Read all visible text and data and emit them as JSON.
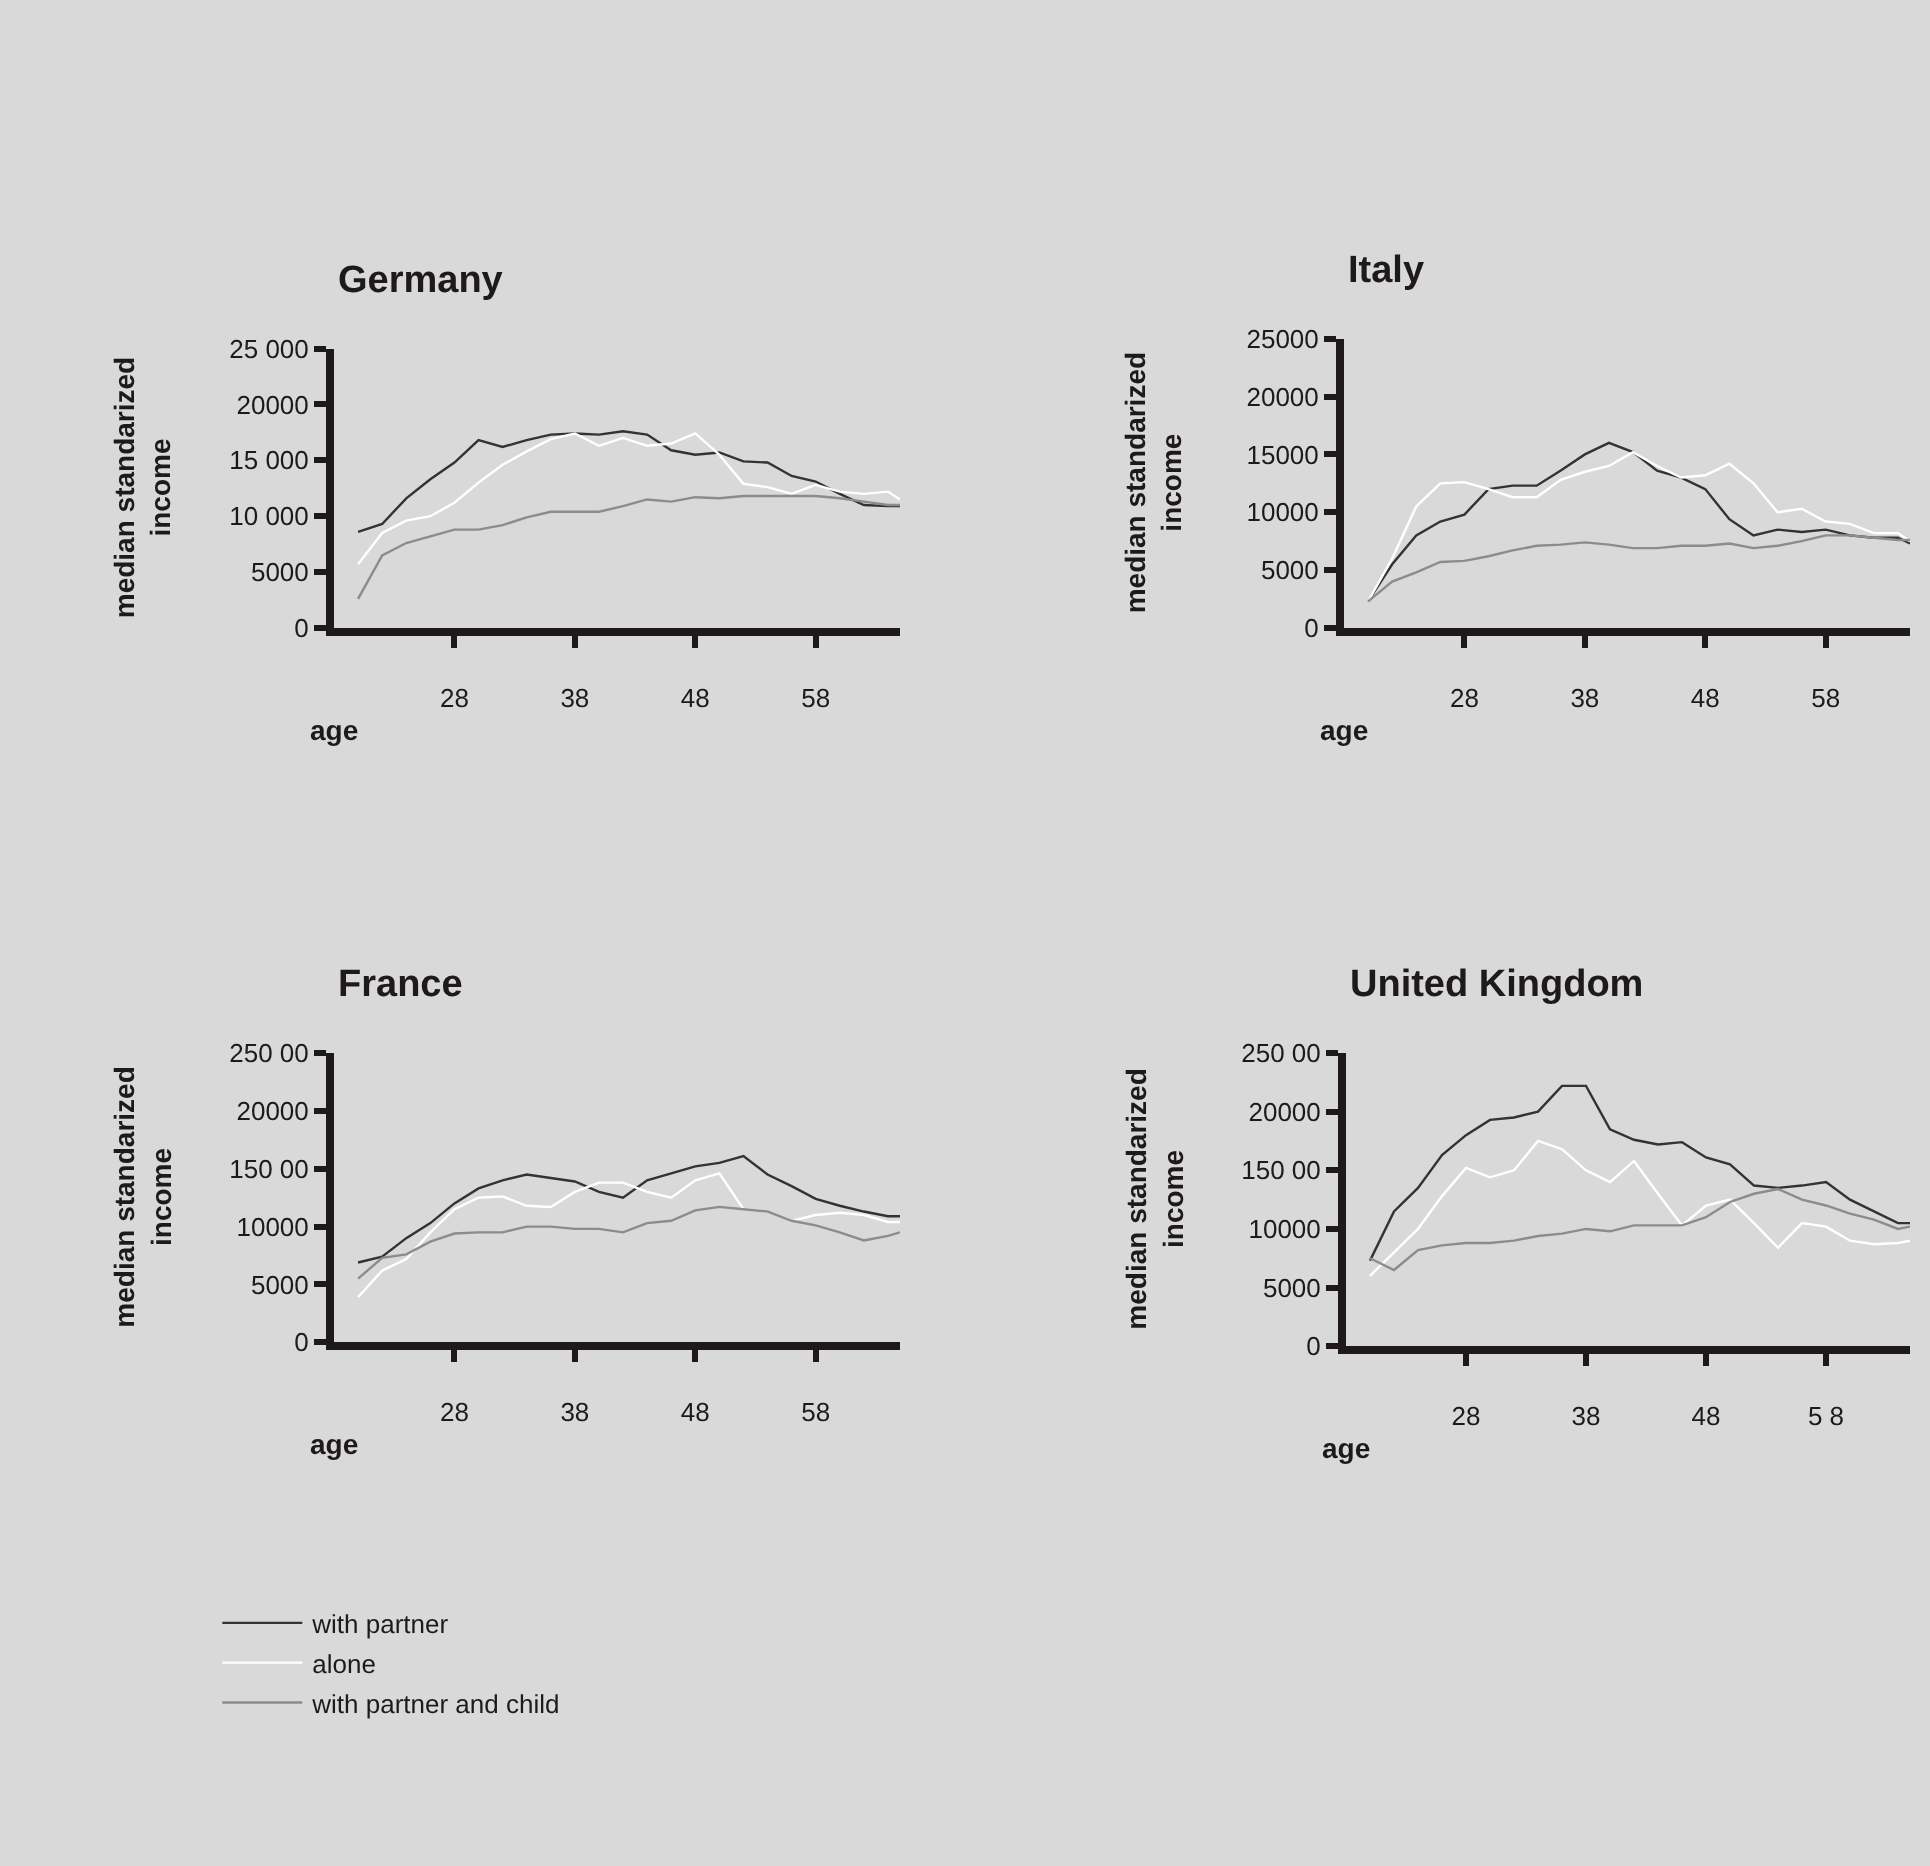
{
  "chart_data": [
    {
      "type": "line",
      "title": "Germany",
      "xlabel": "age",
      "ylabel": "median standarized income",
      "x": [
        20,
        22,
        24,
        26,
        28,
        30,
        32,
        34,
        36,
        38,
        40,
        42,
        44,
        46,
        48,
        50,
        52,
        54,
        56,
        58,
        60,
        62,
        64,
        65
      ],
      "xlim": [
        18,
        65
      ],
      "ylim": [
        0,
        25000
      ],
      "xticks": [
        28,
        38,
        48,
        58
      ],
      "yticks": [
        {
          "value": 0,
          "label": "0"
        },
        {
          "value": 5000,
          "label": "5000"
        },
        {
          "value": 10000,
          "label": "10 000"
        },
        {
          "value": 15000,
          "label": "15 000"
        },
        {
          "value": 20000,
          "label": "20000"
        },
        {
          "value": 25000,
          "label": "25 000"
        }
      ],
      "grid": false,
      "legend": "bottom left",
      "series": [
        {
          "name": "with partner",
          "color": "#333333",
          "values": [
            8600,
            9300,
            11600,
            13300,
            14800,
            16800,
            16200,
            16800,
            17300,
            17400,
            17300,
            17600,
            17300,
            15900,
            15500,
            15700,
            14900,
            14800,
            13600,
            13100,
            12000,
            11000,
            10900,
            10900
          ]
        },
        {
          "name": "alone",
          "color": "#ffffff",
          "values": [
            5700,
            8500,
            9600,
            10000,
            11200,
            13000,
            14600,
            15800,
            16900,
            17400,
            16300,
            17000,
            16300,
            16500,
            17400,
            15500,
            12900,
            12600,
            12000,
            12800,
            12200,
            12000,
            12200,
            11500
          ]
        },
        {
          "name": "with partner and child",
          "color": "#8c8c8c",
          "values": [
            2600,
            6500,
            7600,
            8200,
            8800,
            8800,
            9200,
            9900,
            10400,
            10400,
            10400,
            10900,
            11500,
            11300,
            11700,
            11600,
            11800,
            11800,
            11800,
            11800,
            11600,
            11300,
            11000,
            11000
          ]
        }
      ]
    },
    {
      "type": "line",
      "title": "Italy",
      "xlabel": "age",
      "ylabel": "median standarized income",
      "x": [
        20,
        22,
        24,
        26,
        28,
        30,
        32,
        34,
        36,
        38,
        40,
        42,
        44,
        46,
        48,
        50,
        52,
        54,
        56,
        58,
        60,
        62,
        64,
        65
      ],
      "xlim": [
        18,
        65
      ],
      "ylim": [
        0,
        25000
      ],
      "xticks": [
        28,
        38,
        48,
        58
      ],
      "yticks": [
        0,
        5000,
        10000,
        15000,
        20000,
        25000
      ],
      "grid": false,
      "series": [
        {
          "color": "#333333",
          "values": [
            2300,
            5500,
            8000,
            9200,
            9800,
            12000,
            12300,
            12300,
            13600,
            15000,
            16000,
            15200,
            13600,
            13000,
            12000,
            9400,
            8000,
            8500,
            8300,
            8500,
            8000,
            7800,
            7800,
            7300
          ]
        },
        {
          "color": "#ffffff",
          "values": [
            2300,
            6000,
            10500,
            12500,
            12600,
            12000,
            11300,
            11300,
            12800,
            13500,
            14000,
            15200,
            14000,
            13000,
            13200,
            14200,
            12500,
            10000,
            10300,
            9200,
            9000,
            8200,
            8200,
            7500
          ]
        },
        {
          "color": "#8c8c8c",
          "values": [
            2300,
            4000,
            4800,
            5700,
            5800,
            6200,
            6700,
            7100,
            7200,
            7400,
            7200,
            6900,
            6900,
            7100,
            7100,
            7300,
            6900,
            7100,
            7500,
            8000,
            8000,
            7800,
            7600,
            7600
          ]
        }
      ]
    },
    {
      "type": "line",
      "title": "France",
      "xlabel": "age",
      "ylabel": "median standarized income",
      "x": [
        20,
        22,
        24,
        26,
        28,
        30,
        32,
        34,
        36,
        38,
        40,
        42,
        44,
        46,
        48,
        50,
        52,
        54,
        56,
        58,
        60,
        62,
        64,
        65
      ],
      "xlim": [
        18,
        65
      ],
      "ylim": [
        0,
        25000
      ],
      "xticks": [
        28,
        38,
        48,
        58
      ],
      "yticks": [
        {
          "value": 0,
          "label": "0"
        },
        {
          "value": 5000,
          "label": "5000"
        },
        {
          "value": 10000,
          "label": "10000"
        },
        {
          "value": 15000,
          "label": "150 00"
        },
        {
          "value": 20000,
          "label": "20000"
        },
        {
          "value": 25000,
          "label": "250 00"
        }
      ],
      "grid": false,
      "series": [
        {
          "color": "#333333",
          "values": [
            6900,
            7400,
            9000,
            10300,
            12000,
            13300,
            14000,
            14500,
            14200,
            13900,
            13000,
            12500,
            14000,
            14600,
            15200,
            15500,
            16100,
            14500,
            13500,
            12400,
            11800,
            11300,
            10900,
            10900
          ]
        },
        {
          "color": "#ffffff",
          "values": [
            3900,
            6200,
            7200,
            9500,
            11500,
            12500,
            12600,
            11800,
            11700,
            13000,
            13800,
            13800,
            13000,
            12500,
            14000,
            14600,
            11500,
            11300,
            10500,
            11000,
            11200,
            11000,
            10400,
            10400
          ]
        },
        {
          "color": "#8c8c8c",
          "values": [
            5500,
            7300,
            7600,
            8700,
            9400,
            9500,
            9500,
            10000,
            10000,
            9800,
            9800,
            9500,
            10300,
            10500,
            11400,
            11700,
            11500,
            11300,
            10500,
            10100,
            9500,
            8800,
            9200,
            9500
          ]
        }
      ]
    },
    {
      "type": "line",
      "title": "United Kingdom",
      "xlabel": "age",
      "ylabel": "median standarized income",
      "x": [
        20,
        22,
        24,
        26,
        28,
        30,
        32,
        34,
        36,
        38,
        40,
        42,
        44,
        46,
        48,
        50,
        52,
        54,
        56,
        58,
        60,
        62,
        64,
        65
      ],
      "xlim": [
        18,
        65
      ],
      "ylim": [
        0,
        25000
      ],
      "xticks": [
        28,
        38,
        48,
        {
          "value": 58,
          "label": "5 8"
        }
      ],
      "yticks": [
        {
          "value": 0,
          "label": "0"
        },
        {
          "value": 5000,
          "label": "5000"
        },
        {
          "value": 10000,
          "label": "10000"
        },
        {
          "value": 15000,
          "label": "150 00"
        },
        {
          "value": 20000,
          "label": "20000"
        },
        {
          "value": 25000,
          "label": "250 00"
        }
      ],
      "grid": false,
      "series": [
        {
          "color": "#333333",
          "values": [
            7300,
            11500,
            13500,
            16300,
            18000,
            19300,
            19500,
            20000,
            22200,
            22200,
            18500,
            17600,
            17200,
            17400,
            16100,
            15500,
            13700,
            13500,
            13700,
            14000,
            12500,
            11500,
            10500,
            10500
          ]
        },
        {
          "color": "#ffffff",
          "values": [
            6000,
            8000,
            10000,
            12800,
            15200,
            14400,
            15000,
            17500,
            16800,
            15000,
            14000,
            15800,
            13000,
            10300,
            12000,
            12500,
            10500,
            8400,
            10500,
            10200,
            9000,
            8700,
            8800,
            9000
          ]
        },
        {
          "color": "#8c8c8c",
          "values": [
            7500,
            6500,
            8200,
            8600,
            8800,
            8800,
            9000,
            9400,
            9600,
            10000,
            9800,
            10300,
            10300,
            10300,
            11000,
            12300,
            13000,
            13400,
            12500,
            12000,
            11300,
            10800,
            10000,
            10200
          ]
        }
      ]
    }
  ]
}
